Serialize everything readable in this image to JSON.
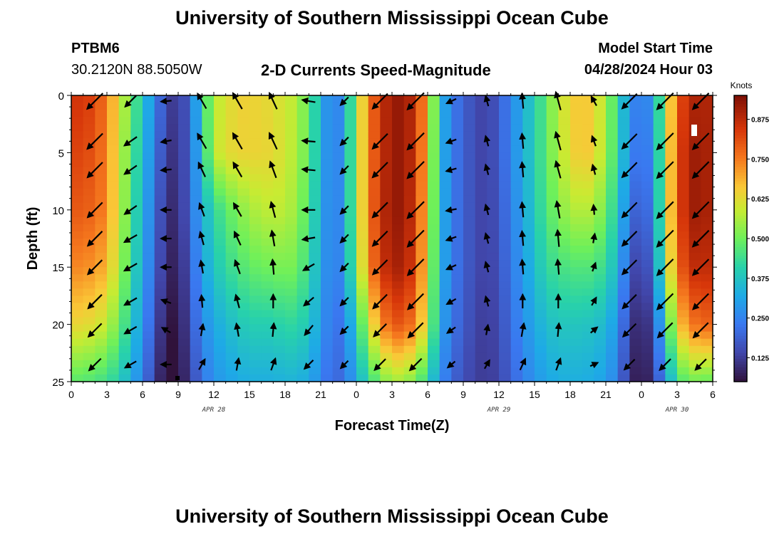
{
  "header": {
    "title": "University of Southern Mississippi Ocean Cube",
    "station_id": "PTBM6",
    "station_coords": "30.2120N  88.5050W",
    "plot_title": "2-D Currents Speed-Magnitude",
    "model_start_label": "Model Start Time",
    "model_start_value": "04/28/2024 Hour 03"
  },
  "footer": {
    "title": "University of Southern Mississippi Ocean Cube"
  },
  "chart_data": {
    "type": "heatmap",
    "title": "2-D Currents Speed-Magnitude",
    "xlabel": "Forecast Time(Z)",
    "ylabel": "Depth (ft)",
    "x_unit": "hours since Apr 28 00Z",
    "xlim": [
      0,
      54
    ],
    "ylim": [
      0,
      25
    ],
    "y_inverted": true,
    "x_ticks": [
      0,
      3,
      6,
      9,
      12,
      15,
      18,
      21,
      24,
      27,
      30,
      33,
      36,
      39,
      42,
      45,
      48,
      51,
      54
    ],
    "x_tick_labels": [
      "0",
      "3",
      "6",
      "9",
      "12",
      "15",
      "18",
      "21",
      "0",
      "3",
      "6",
      "9",
      "12",
      "15",
      "18",
      "21",
      "0",
      "3",
      "6"
    ],
    "y_ticks": [
      0,
      5,
      10,
      15,
      20,
      25
    ],
    "y_tick_labels": [
      "0",
      "5",
      "10",
      "15",
      "20",
      "25"
    ],
    "date_labels": [
      {
        "hour": 12,
        "text": "APR 28"
      },
      {
        "hour": 36,
        "text": "APR 29"
      },
      {
        "hour": 51,
        "text": "APR 30"
      }
    ],
    "colorbar": {
      "unit": "Knots",
      "range": [
        0.05,
        0.95
      ],
      "ticks": [
        0.125,
        0.25,
        0.375,
        0.5,
        0.625,
        0.75,
        0.875
      ],
      "tick_labels": [
        "0.125",
        "0.250",
        "0.375",
        "0.500",
        "0.625",
        "0.750",
        "0.875"
      ]
    },
    "grid_hours": [
      0,
      1,
      2,
      3,
      4,
      5,
      6,
      7,
      8,
      9,
      10,
      11,
      12,
      13,
      14,
      15,
      16,
      17,
      18,
      19,
      20,
      21,
      22,
      23,
      24,
      25,
      26,
      27,
      28,
      29,
      30,
      31,
      32,
      33,
      34,
      35,
      36,
      37,
      38,
      39,
      40,
      41,
      42,
      43,
      44,
      45,
      46,
      47,
      48,
      49,
      50,
      51,
      52,
      53,
      54
    ],
    "speed_profiles": [
      {
        "depth": 0,
        "speed": [
          0.85,
          0.85,
          0.82,
          0.75,
          0.62,
          0.5,
          0.38,
          0.26,
          0.14,
          0.11,
          0.2,
          0.4,
          0.58,
          0.6,
          0.65,
          0.64,
          0.64,
          0.62,
          0.6,
          0.57,
          0.48,
          0.34,
          0.22,
          0.3,
          0.55,
          0.74,
          0.85,
          0.92,
          0.92,
          0.86,
          0.68,
          0.36,
          0.24,
          0.19,
          0.15,
          0.13,
          0.18,
          0.25,
          0.33,
          0.4,
          0.48,
          0.58,
          0.64,
          0.67,
          0.64,
          0.56,
          0.42,
          0.28,
          0.22,
          0.3,
          0.55,
          0.78,
          0.88,
          0.9,
          0.88
        ]
      },
      {
        "depth": 5,
        "speed": [
          0.83,
          0.82,
          0.8,
          0.74,
          0.6,
          0.48,
          0.36,
          0.24,
          0.12,
          0.1,
          0.2,
          0.37,
          0.58,
          0.62,
          0.64,
          0.64,
          0.64,
          0.63,
          0.6,
          0.56,
          0.48,
          0.34,
          0.22,
          0.3,
          0.55,
          0.74,
          0.85,
          0.92,
          0.92,
          0.85,
          0.66,
          0.36,
          0.24,
          0.19,
          0.15,
          0.13,
          0.18,
          0.25,
          0.33,
          0.4,
          0.48,
          0.56,
          0.63,
          0.67,
          0.64,
          0.55,
          0.42,
          0.27,
          0.2,
          0.28,
          0.55,
          0.8,
          0.9,
          0.92,
          0.88
        ]
      },
      {
        "depth": 10,
        "speed": [
          0.8,
          0.79,
          0.78,
          0.73,
          0.6,
          0.46,
          0.34,
          0.22,
          0.1,
          0.09,
          0.2,
          0.33,
          0.42,
          0.47,
          0.52,
          0.55,
          0.58,
          0.58,
          0.58,
          0.54,
          0.46,
          0.33,
          0.22,
          0.3,
          0.55,
          0.74,
          0.86,
          0.92,
          0.92,
          0.84,
          0.64,
          0.36,
          0.24,
          0.19,
          0.15,
          0.13,
          0.17,
          0.24,
          0.31,
          0.39,
          0.46,
          0.52,
          0.56,
          0.58,
          0.56,
          0.5,
          0.38,
          0.23,
          0.16,
          0.26,
          0.55,
          0.8,
          0.9,
          0.92,
          0.88
        ]
      },
      {
        "depth": 15,
        "speed": [
          0.74,
          0.73,
          0.72,
          0.68,
          0.57,
          0.44,
          0.32,
          0.2,
          0.09,
          0.07,
          0.18,
          0.3,
          0.38,
          0.42,
          0.46,
          0.48,
          0.5,
          0.5,
          0.52,
          0.5,
          0.43,
          0.32,
          0.22,
          0.29,
          0.52,
          0.72,
          0.84,
          0.9,
          0.9,
          0.82,
          0.62,
          0.35,
          0.24,
          0.19,
          0.15,
          0.13,
          0.16,
          0.23,
          0.29,
          0.36,
          0.42,
          0.45,
          0.46,
          0.47,
          0.46,
          0.43,
          0.34,
          0.18,
          0.11,
          0.22,
          0.52,
          0.76,
          0.86,
          0.88,
          0.86
        ]
      },
      {
        "depth": 20,
        "speed": [
          0.64,
          0.63,
          0.62,
          0.58,
          0.5,
          0.4,
          0.28,
          0.17,
          0.06,
          0.05,
          0.16,
          0.26,
          0.32,
          0.35,
          0.38,
          0.4,
          0.4,
          0.4,
          0.42,
          0.42,
          0.38,
          0.3,
          0.21,
          0.24,
          0.4,
          0.58,
          0.72,
          0.8,
          0.8,
          0.74,
          0.58,
          0.33,
          0.23,
          0.18,
          0.14,
          0.12,
          0.15,
          0.21,
          0.27,
          0.32,
          0.36,
          0.38,
          0.38,
          0.38,
          0.37,
          0.35,
          0.28,
          0.13,
          0.07,
          0.15,
          0.4,
          0.64,
          0.74,
          0.78,
          0.78
        ]
      },
      {
        "depth": 25,
        "speed": [
          0.48,
          0.47,
          0.46,
          0.44,
          0.4,
          0.33,
          0.24,
          0.13,
          0.04,
          0.04,
          0.13,
          0.22,
          0.28,
          0.3,
          0.32,
          0.33,
          0.33,
          0.33,
          0.34,
          0.34,
          0.32,
          0.26,
          0.19,
          0.22,
          0.32,
          0.42,
          0.5,
          0.55,
          0.55,
          0.5,
          0.42,
          0.28,
          0.2,
          0.16,
          0.13,
          0.12,
          0.14,
          0.19,
          0.24,
          0.28,
          0.31,
          0.33,
          0.33,
          0.33,
          0.32,
          0.3,
          0.24,
          0.1,
          0.05,
          0.11,
          0.28,
          0.44,
          0.5,
          0.5,
          0.48
        ]
      }
    ],
    "arrow_hours": [
      2,
      5,
      8,
      11,
      14,
      17,
      20,
      23,
      26,
      29,
      32,
      35,
      38,
      41,
      44,
      47,
      50,
      53
    ],
    "arrow_depths": [
      0.5,
      4.0,
      6.5,
      10.0,
      12.5,
      15.0,
      18.0,
      20.5,
      23.5
    ],
    "arrow_directions_deg": [
      [
        225,
        225,
        225,
        225,
        225,
        225,
        225,
        225,
        225
      ],
      [
        225,
        235,
        235,
        235,
        240,
        240,
        240,
        240,
        240
      ],
      [
        265,
        260,
        265,
        270,
        270,
        270,
        290,
        300,
        270
      ],
      [
        330,
        330,
        335,
        340,
        345,
        350,
        355,
        10,
        30
      ],
      [
        330,
        330,
        330,
        330,
        335,
        340,
        345,
        350,
        10
      ],
      [
        335,
        335,
        340,
        345,
        350,
        355,
        360,
        5,
        20
      ],
      [
        280,
        275,
        275,
        270,
        260,
        240,
        230,
        220,
        225
      ],
      [
        225,
        225,
        225,
        225,
        225,
        225,
        225,
        225,
        225
      ],
      [
        225,
        225,
        225,
        225,
        225,
        225,
        225,
        225,
        225
      ],
      [
        225,
        225,
        225,
        225,
        225,
        225,
        225,
        225,
        225
      ],
      [
        245,
        250,
        255,
        260,
        250,
        245,
        240,
        235,
        230
      ],
      [
        345,
        345,
        345,
        345,
        345,
        345,
        345,
        10,
        30
      ],
      [
        355,
        355,
        355,
        355,
        355,
        355,
        360,
        10,
        25
      ],
      [
        345,
        345,
        345,
        350,
        355,
        355,
        360,
        5,
        20
      ],
      [
        330,
        340,
        345,
        355,
        10,
        20,
        30,
        50,
        65
      ],
      [
        225,
        225,
        225,
        225,
        225,
        225,
        225,
        225,
        225
      ],
      [
        225,
        225,
        225,
        225,
        225,
        225,
        225,
        225,
        225
      ],
      [
        225,
        225,
        225,
        225,
        225,
        225,
        225,
        225,
        225
      ]
    ],
    "arrow_magnitudes": [
      [
        0.85,
        0.83,
        0.8,
        0.78,
        0.76,
        0.74,
        0.7,
        0.66,
        0.56
      ],
      [
        0.5,
        0.48,
        0.46,
        0.45,
        0.44,
        0.44,
        0.42,
        0.4,
        0.35
      ],
      [
        0.22,
        0.22,
        0.22,
        0.22,
        0.22,
        0.22,
        0.2,
        0.18,
        0.22
      ],
      [
        0.58,
        0.58,
        0.5,
        0.4,
        0.38,
        0.35,
        0.32,
        0.3,
        0.3
      ],
      [
        0.64,
        0.64,
        0.55,
        0.48,
        0.45,
        0.43,
        0.38,
        0.36,
        0.32
      ],
      [
        0.62,
        0.62,
        0.58,
        0.52,
        0.5,
        0.46,
        0.4,
        0.38,
        0.33
      ],
      [
        0.36,
        0.36,
        0.36,
        0.34,
        0.34,
        0.34,
        0.34,
        0.34,
        0.32
      ],
      [
        0.26,
        0.26,
        0.26,
        0.26,
        0.26,
        0.26,
        0.26,
        0.24,
        0.22
      ],
      [
        0.8,
        0.8,
        0.8,
        0.8,
        0.78,
        0.76,
        0.72,
        0.62,
        0.5
      ],
      [
        0.92,
        0.92,
        0.92,
        0.92,
        0.9,
        0.88,
        0.84,
        0.78,
        0.55
      ],
      [
        0.22,
        0.22,
        0.22,
        0.22,
        0.22,
        0.22,
        0.22,
        0.2,
        0.17
      ],
      [
        0.22,
        0.22,
        0.22,
        0.22,
        0.22,
        0.22,
        0.21,
        0.2,
        0.18
      ],
      [
        0.46,
        0.46,
        0.46,
        0.46,
        0.44,
        0.43,
        0.4,
        0.38,
        0.32
      ],
      [
        0.66,
        0.66,
        0.6,
        0.58,
        0.56,
        0.46,
        0.4,
        0.38,
        0.33
      ],
      [
        0.22,
        0.22,
        0.2,
        0.18,
        0.16,
        0.14,
        0.14,
        0.12,
        0.1
      ],
      [
        0.78,
        0.78,
        0.78,
        0.78,
        0.76,
        0.74,
        0.7,
        0.64,
        0.44
      ],
      [
        0.9,
        0.9,
        0.9,
        0.9,
        0.9,
        0.88,
        0.86,
        0.78,
        0.5
      ],
      [
        0.88,
        0.88,
        0.88,
        0.88,
        0.88,
        0.86,
        0.84,
        0.78,
        0.48
      ]
    ]
  }
}
